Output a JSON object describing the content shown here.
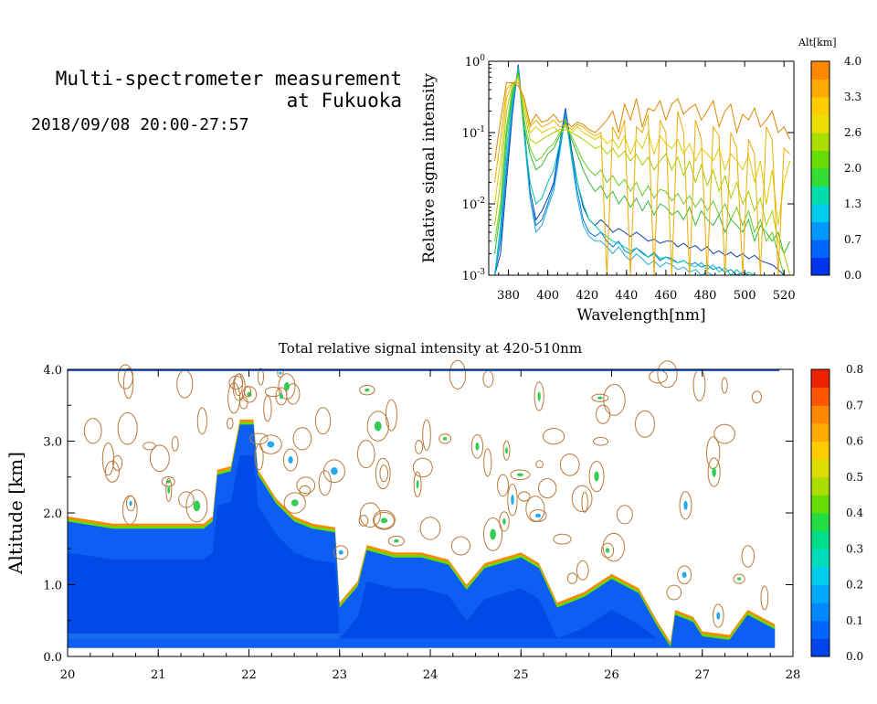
{
  "header": {
    "title_line1": "Multi-spectrometer measurement",
    "title_line2": "at Fukuoka",
    "datetime": "2018/09/08 20:00-27:57"
  },
  "chart_data": [
    {
      "type": "line",
      "xlabel": "Wavelength[nm]",
      "ylabel": "Relative signal intensity",
      "xlim": [
        370,
        525
      ],
      "xticks": [
        380,
        400,
        420,
        440,
        460,
        480,
        500,
        520
      ],
      "ylog": true,
      "ylim": [
        0.001,
        1
      ],
      "yticks": [
        {
          "label": "10^-3",
          "value": 0.001
        },
        {
          "label": "10^-2",
          "value": 0.01
        },
        {
          "label": "10^-1",
          "value": 0.1
        },
        {
          "label": "10^0",
          "value": 1
        }
      ],
      "x": [
        373,
        376,
        379,
        382,
        385,
        388,
        391,
        394,
        397,
        400,
        403,
        406,
        409,
        412,
        415,
        418,
        421,
        424,
        427,
        430,
        433,
        436,
        439,
        442,
        445,
        448,
        451,
        454,
        457,
        460,
        463,
        466,
        469,
        472,
        475,
        478,
        481,
        484,
        487,
        490,
        493,
        496,
        499,
        502,
        505,
        508,
        511,
        514,
        517,
        520,
        523
      ],
      "colorbar": {
        "title": "Alt[km]",
        "ticks": [
          "4.0",
          "3.3",
          "2.6",
          "2.0",
          "1.3",
          "0.7",
          "0.0"
        ],
        "colors": [
          "#0033ee",
          "#0066ff",
          "#0099ff",
          "#00ccee",
          "#00ddaa",
          "#33dd33",
          "#66dd00",
          "#aadd00",
          "#eedd00",
          "#ffcc00",
          "#ffaa00",
          "#ff8800"
        ]
      },
      "series": [
        {
          "color": "#0b3fb0",
          "values": [
            0.001,
            0.002,
            0.02,
            0.18,
            0.9,
            0.12,
            0.015,
            0.006,
            0.008,
            0.012,
            0.02,
            0.07,
            0.22,
            0.06,
            0.02,
            0.009,
            0.006,
            0.005,
            0.006,
            0.005,
            0.004,
            0.0045,
            0.004,
            0.0035,
            0.004,
            0.0035,
            0.003,
            0.0032,
            0.0028,
            0.003,
            0.003,
            0.0025,
            0.0028,
            0.0024,
            0.0026,
            0.0022,
            0.0025,
            0.002,
            0.0022,
            0.0019,
            0.0021,
            0.0018,
            0.002,
            0.0017,
            0.0019,
            0.0016,
            0.0015,
            0.0014,
            0.0012,
            0.001,
            0.001
          ]
        },
        {
          "color": "#0077ee",
          "values": [
            0.001,
            0.003,
            0.03,
            0.2,
            0.85,
            0.1,
            0.012,
            0.005,
            0.006,
            0.01,
            0.018,
            0.06,
            0.2,
            0.05,
            0.015,
            0.006,
            0.004,
            0.0035,
            0.004,
            0.003,
            0.0025,
            0.003,
            0.0022,
            0.002,
            0.0024,
            0.0021,
            0.0018,
            0.002,
            0.0016,
            0.0018,
            0.0017,
            0.0015,
            0.0016,
            0.0014,
            0.0015,
            0.0013,
            0.0014,
            0.0012,
            0.0013,
            0.0011,
            0.0012,
            0.001,
            0.0011,
            0.001,
            0.001,
            0.001,
            0.001,
            0.001,
            0.001,
            0.001,
            0.001
          ]
        },
        {
          "color": "#22aadd",
          "values": [
            0.001,
            0.004,
            0.04,
            0.25,
            0.8,
            0.09,
            0.012,
            0.004,
            0.005,
            0.009,
            0.015,
            0.05,
            0.18,
            0.045,
            0.012,
            0.005,
            0.0035,
            0.003,
            0.003,
            0.0025,
            0.002,
            0.0025,
            0.0019,
            0.0016,
            0.002,
            0.0017,
            0.0014,
            0.0016,
            0.0013,
            0.0015,
            0.0014,
            0.0012,
            0.0013,
            0.0011,
            0.0012,
            0.001,
            0.0011,
            0.001,
            0.001,
            0.001,
            0.001,
            0.001,
            0.001,
            0.001,
            0.001,
            0.001,
            0.001,
            0.001,
            0.001,
            0.001,
            0.001
          ]
        },
        {
          "color": "#00c8a0",
          "values": [
            0.001,
            0.005,
            0.06,
            0.3,
            0.75,
            0.1,
            0.02,
            0.01,
            0.012,
            0.02,
            0.03,
            0.07,
            0.16,
            0.05,
            0.02,
            0.01,
            0.006,
            0.005,
            0.004,
            0.0035,
            0.003,
            0.0028,
            0.0025,
            0.0022,
            0.0024,
            0.002,
            0.0018,
            0.0021,
            0.0017,
            0.0018,
            0.0016,
            0.0015,
            0.0016,
            0.0014,
            0.0013,
            0.0015,
            0.0012,
            0.0014,
            0.0011,
            0.0013,
            0.001,
            0.0012,
            0.001,
            0.0011,
            0.001,
            0.001,
            0.001,
            0.001,
            0.001,
            0.001,
            0.001
          ]
        },
        {
          "color": "#33bb33",
          "values": [
            0.002,
            0.008,
            0.09,
            0.35,
            0.7,
            0.12,
            0.05,
            0.03,
            0.035,
            0.05,
            0.06,
            0.09,
            0.14,
            0.08,
            0.05,
            0.03,
            0.02,
            0.015,
            0.018,
            0.012,
            0.015,
            0.01,
            0.013,
            0.009,
            0.012,
            0.008,
            0.011,
            0.007,
            0.01,
            0.009,
            0.007,
            0.008,
            0.006,
            0.009,
            0.005,
            0.008,
            0.006,
            0.005,
            0.007,
            0.004,
            0.006,
            0.005,
            0.004,
            0.006,
            0.003,
            0.005,
            0.004,
            0.003,
            0.004,
            0.002,
            0.003
          ]
        },
        {
          "color": "#66cc22",
          "values": [
            0.003,
            0.01,
            0.12,
            0.4,
            0.65,
            0.15,
            0.06,
            0.04,
            0.045,
            0.06,
            0.07,
            0.1,
            0.13,
            0.09,
            0.06,
            0.04,
            0.03,
            0.025,
            0.03,
            0.02,
            0.025,
            0.018,
            0.022,
            0.015,
            0.02,
            0.013,
            0.018,
            0.012,
            0.016,
            0.015,
            0.011,
            0.014,
            0.01,
            0.013,
            0.009,
            0.012,
            0.008,
            0.011,
            0.007,
            0.01,
            0.006,
            0.009,
            0.005,
            0.008,
            0.004,
            0.006,
            0.003,
            0.004,
            0.002,
            0.001,
            0.001
          ]
        },
        {
          "color": "#aacc00",
          "values": [
            0.005,
            0.02,
            0.2,
            0.45,
            0.6,
            0.2,
            0.08,
            0.07,
            0.08,
            0.09,
            0.1,
            0.11,
            0.12,
            0.1,
            0.09,
            0.08,
            0.07,
            0.06,
            0.065,
            0.05,
            0.06,
            0.045,
            0.055,
            0.04,
            0.05,
            0.035,
            0.045,
            0.03,
            0.04,
            0.05,
            0.03,
            0.045,
            0.025,
            0.04,
            0.02,
            0.035,
            0.018,
            0.03,
            0.015,
            0.025,
            0.012,
            0.02,
            0.01,
            0.015,
            0.008,
            0.012,
            0.005,
            0.008,
            0.003,
            0.002,
            0.001
          ]
        },
        {
          "color": "#ddcc00",
          "values": [
            0.01,
            0.04,
            0.3,
            0.5,
            0.55,
            0.25,
            0.1,
            0.12,
            0.1,
            0.11,
            0.12,
            0.1,
            0.11,
            0.1,
            0.12,
            0.1,
            0.09,
            0.08,
            0.09,
            0.07,
            0.08,
            0.06,
            0.09,
            0.05,
            0.08,
            0.06,
            0.1,
            0.05,
            0.09,
            0.07,
            0.06,
            0.08,
            0.05,
            0.07,
            0.04,
            0.06,
            0.05,
            0.04,
            0.06,
            0.03,
            0.05,
            0.04,
            0.03,
            0.05,
            0.02,
            0.04,
            0.01,
            0.03,
            0.005,
            0.02,
            0.04
          ]
        },
        {
          "color": "#eeaa00",
          "values": [
            0.02,
            0.08,
            0.4,
            0.5,
            0.5,
            0.3,
            0.12,
            0.15,
            0.12,
            0.13,
            0.15,
            0.12,
            0.13,
            0.11,
            0.13,
            0.12,
            0.1,
            0.09,
            0.1,
            0.001,
            0.12,
            0.08,
            0.15,
            0.001,
            0.12,
            0.1,
            0.18,
            0.001,
            0.15,
            0.1,
            0.001,
            0.2,
            0.1,
            0.001,
            0.15,
            0.08,
            0.001,
            0.12,
            0.09,
            0.001,
            0.1,
            0.06,
            0.001,
            0.08,
            0.05,
            0.001,
            0.12,
            0.08,
            0.001,
            0.06,
            0.05
          ]
        },
        {
          "color": "#dd8800",
          "values": [
            0.04,
            0.15,
            0.5,
            0.5,
            0.45,
            0.3,
            0.13,
            0.18,
            0.14,
            0.15,
            0.18,
            0.14,
            0.15,
            0.12,
            0.14,
            0.13,
            0.11,
            0.1,
            0.12,
            0.15,
            0.2,
            0.1,
            0.25,
            0.15,
            0.3,
            0.12,
            0.22,
            0.2,
            0.28,
            0.15,
            0.25,
            0.3,
            0.18,
            0.22,
            0.25,
            0.15,
            0.2,
            0.28,
            0.12,
            0.2,
            0.25,
            0.1,
            0.18,
            0.15,
            0.22,
            0.12,
            0.15,
            0.2,
            0.1,
            0.12,
            0.08
          ]
        }
      ]
    },
    {
      "type": "heatmap",
      "title": "Total relative signal intensity at 420-510nm",
      "ylabel": "Altitude [km]",
      "xlim": [
        20,
        28
      ],
      "xticks": [
        "20",
        "21",
        "22",
        "23",
        "24",
        "25",
        "26",
        "27",
        "28"
      ],
      "ylim": [
        0,
        4
      ],
      "yticks": [
        "0.0",
        "1.0",
        "2.0",
        "3.0",
        "4.0"
      ],
      "layer_top_km": [
        {
          "t": 20.0,
          "top": 1.95
        },
        {
          "t": 20.5,
          "top": 1.85
        },
        {
          "t": 21.0,
          "top": 1.85
        },
        {
          "t": 21.5,
          "top": 1.85
        },
        {
          "t": 21.6,
          "top": 1.95
        },
        {
          "t": 21.65,
          "top": 2.6
        },
        {
          "t": 21.8,
          "top": 2.65
        },
        {
          "t": 21.9,
          "top": 3.3
        },
        {
          "t": 22.05,
          "top": 3.3
        },
        {
          "t": 22.1,
          "top": 2.6
        },
        {
          "t": 22.3,
          "top": 2.2
        },
        {
          "t": 22.5,
          "top": 1.95
        },
        {
          "t": 22.7,
          "top": 1.85
        },
        {
          "t": 22.95,
          "top": 1.8
        },
        {
          "t": 23.0,
          "top": 0.75
        },
        {
          "t": 23.2,
          "top": 1.05
        },
        {
          "t": 23.3,
          "top": 1.55
        },
        {
          "t": 23.6,
          "top": 1.45
        },
        {
          "t": 23.9,
          "top": 1.45
        },
        {
          "t": 24.2,
          "top": 1.35
        },
        {
          "t": 24.4,
          "top": 1.0
        },
        {
          "t": 24.6,
          "top": 1.3
        },
        {
          "t": 25.0,
          "top": 1.45
        },
        {
          "t": 25.2,
          "top": 1.3
        },
        {
          "t": 25.4,
          "top": 0.75
        },
        {
          "t": 25.7,
          "top": 0.9
        },
        {
          "t": 26.0,
          "top": 1.15
        },
        {
          "t": 26.3,
          "top": 0.95
        },
        {
          "t": 26.5,
          "top": 0.5
        },
        {
          "t": 26.65,
          "top": 0.2
        },
        {
          "t": 26.7,
          "top": 0.65
        },
        {
          "t": 26.9,
          "top": 0.55
        },
        {
          "t": 27.0,
          "top": 0.35
        },
        {
          "t": 27.3,
          "top": 0.3
        },
        {
          "t": 27.5,
          "top": 0.65
        },
        {
          "t": 27.8,
          "top": 0.45
        }
      ],
      "colorbar": {
        "ticks": [
          "0.8",
          "0.7",
          "0.6",
          "0.5",
          "0.4",
          "0.3",
          "0.2",
          "0.1",
          "0.0"
        ],
        "colors": [
          "#0044ee",
          "#0066ff",
          "#0088ff",
          "#00aaff",
          "#00ccee",
          "#00ddbb",
          "#00dd88",
          "#22dd44",
          "#66dd00",
          "#aadd00",
          "#dddd00",
          "#ffcc00",
          "#ffaa00",
          "#ff8800",
          "#ff5500",
          "#ee2200"
        ]
      }
    }
  ]
}
